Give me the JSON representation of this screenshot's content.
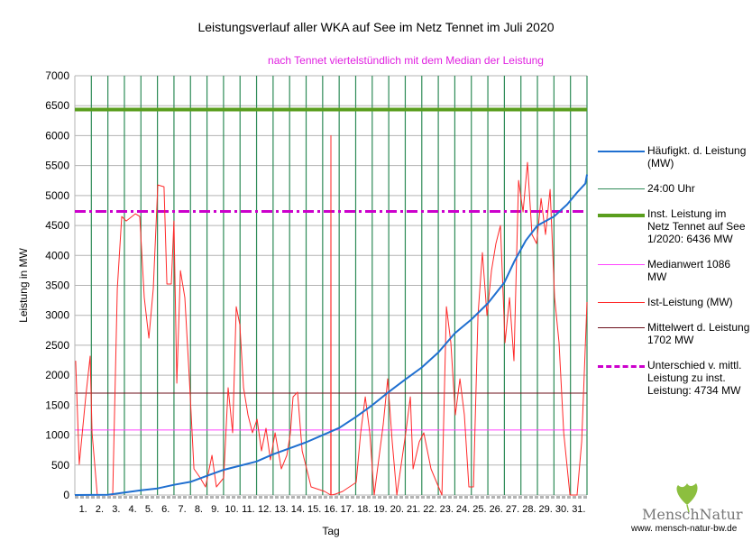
{
  "chart_data": {
    "type": "line",
    "title": "Leistungsverlauf aller WKA auf See im Netz Tennet im Juli 2020",
    "subtitle": "nach Tennet viertelstündlich mit dem Median der Leistung",
    "xlabel": "Tag",
    "ylabel": "Leistung in MW",
    "ylim": [
      0,
      7000
    ],
    "xlim": [
      0,
      31
    ],
    "y_ticks": [
      "0",
      "500",
      "1000",
      "1500",
      "2000",
      "2500",
      "3000",
      "3500",
      "4000",
      "4500",
      "5000",
      "5500",
      "6000",
      "6500",
      "7000"
    ],
    "x_ticks": [
      "1.",
      "2.",
      "3.",
      "4.",
      "5.",
      "6.",
      "7.",
      "8.",
      "9.",
      "10.",
      "11.",
      "12.",
      "13.",
      "14.",
      "15.",
      "16.",
      "17.",
      "18.",
      "19.",
      "20.",
      "21.",
      "22.",
      "23.",
      "24.",
      "25.",
      "26.",
      "27.",
      "28.",
      "29.",
      "30.",
      "31."
    ],
    "legend_position": "right",
    "colors": {
      "freq": "#1f6fd0",
      "midnight": "#2e8b57",
      "installed": "#5a9e1e",
      "median": "#ff44ff",
      "actual": "#ff2a2a",
      "mean": "#6b0f1a",
      "diff": "#cc00cc"
    },
    "legend": [
      {
        "label": "Häufigkt. d. Leistung (MW)",
        "key": "freq"
      },
      {
        "label": "24:00 Uhr",
        "key": "midnight"
      },
      {
        "label": "Inst. Leistung im Netz Tennet auf See 1/2020: 6436  MW",
        "key": "installed"
      },
      {
        "label": "Medianwert 1086 MW",
        "key": "median"
      },
      {
        "label": "Ist-Leistung (MW)",
        "key": "actual"
      },
      {
        "label": "Mittelwert d. Leistung 1702 MW",
        "key": "mean"
      },
      {
        "label": "Unterschied v. mittl. Leistung zu inst. Leistung: 4734 MW",
        "key": "diff"
      }
    ],
    "installed_mw": 6436,
    "median_mw": 1086,
    "mean_mw": 1702,
    "diff_level_mw": 4734,
    "series": [
      {
        "name": "Ist-Leistung (MW)",
        "points": [
          [
            0.05,
            2242
          ],
          [
            0.27,
            512
          ],
          [
            0.66,
            1640
          ],
          [
            0.93,
            2318
          ],
          [
            1.04,
            1038
          ],
          [
            1.36,
            0
          ],
          [
            2.29,
            0
          ],
          [
            2.57,
            3446
          ],
          [
            2.84,
            4650
          ],
          [
            3.11,
            4575
          ],
          [
            3.66,
            4696
          ],
          [
            3.93,
            4650
          ],
          [
            4.2,
            3296
          ],
          [
            4.48,
            2619
          ],
          [
            4.75,
            3446
          ],
          [
            5.02,
            5177
          ],
          [
            5.4,
            5147
          ],
          [
            5.57,
            3522
          ],
          [
            5.84,
            3522
          ],
          [
            6.0,
            4575
          ],
          [
            6.17,
            1866
          ],
          [
            6.39,
            3747
          ],
          [
            6.66,
            3296
          ],
          [
            6.93,
            1941
          ],
          [
            7.21,
            436
          ],
          [
            7.59,
            286
          ],
          [
            7.91,
            135
          ],
          [
            8.3,
            662
          ],
          [
            8.57,
            135
          ],
          [
            9.01,
            286
          ],
          [
            9.28,
            1791
          ],
          [
            9.55,
            1038
          ],
          [
            9.77,
            3145
          ],
          [
            9.99,
            2844
          ],
          [
            10.21,
            1791
          ],
          [
            10.48,
            1339
          ],
          [
            10.75,
            1038
          ],
          [
            11.03,
            1264
          ],
          [
            11.3,
            737
          ],
          [
            11.57,
            1114
          ],
          [
            11.84,
            587
          ],
          [
            12.12,
            1038
          ],
          [
            12.5,
            436
          ],
          [
            12.83,
            662
          ],
          [
            13.05,
            1038
          ],
          [
            13.21,
            1640
          ],
          [
            13.48,
            1716
          ],
          [
            13.76,
            737
          ],
          [
            14.03,
            436
          ],
          [
            14.3,
            135
          ],
          [
            15.12,
            60
          ],
          [
            15.49,
            0
          ],
          [
            15.5,
            6000
          ],
          [
            15.51,
            0
          ],
          [
            15.77,
            15
          ],
          [
            16.21,
            60
          ],
          [
            17.03,
            211
          ],
          [
            17.3,
            1038
          ],
          [
            17.58,
            1640
          ],
          [
            17.85,
            1038
          ],
          [
            18.12,
            0
          ],
          [
            18.67,
            1189
          ],
          [
            18.94,
            1941
          ],
          [
            19.21,
            888
          ],
          [
            19.49,
            0
          ],
          [
            20.03,
            1038
          ],
          [
            20.31,
            1640
          ],
          [
            20.47,
            436
          ],
          [
            20.85,
            888
          ],
          [
            21.12,
            1038
          ],
          [
            21.56,
            436
          ],
          [
            22.22,
            0
          ],
          [
            22.49,
            3145
          ],
          [
            22.76,
            2543
          ],
          [
            23.03,
            1339
          ],
          [
            23.31,
            1941
          ],
          [
            23.58,
            1339
          ],
          [
            23.85,
            135
          ],
          [
            24.13,
            135
          ],
          [
            24.4,
            2995
          ],
          [
            24.67,
            4048
          ],
          [
            24.95,
            2995
          ],
          [
            25.22,
            3747
          ],
          [
            25.49,
            4199
          ],
          [
            25.76,
            4500
          ],
          [
            26.04,
            2543
          ],
          [
            26.31,
            3296
          ],
          [
            26.58,
            2242
          ],
          [
            26.86,
            5252
          ],
          [
            27.13,
            4726
          ],
          [
            27.4,
            5553
          ],
          [
            27.67,
            4349
          ],
          [
            27.95,
            4199
          ],
          [
            28.22,
            4951
          ],
          [
            28.49,
            4349
          ],
          [
            28.77,
            5102
          ],
          [
            29.04,
            3296
          ],
          [
            29.31,
            2543
          ],
          [
            29.59,
            1038
          ],
          [
            29.97,
            0
          ],
          [
            30.4,
            0
          ],
          [
            30.68,
            888
          ],
          [
            31.0,
            3221
          ]
        ]
      },
      {
        "name": "Häufigkt. d. Leistung (MW)",
        "points": [
          [
            0,
            0
          ],
          [
            2,
            5
          ],
          [
            3,
            40
          ],
          [
            4,
            80
          ],
          [
            5,
            110
          ],
          [
            6,
            170
          ],
          [
            7,
            220
          ],
          [
            8,
            320
          ],
          [
            9,
            420
          ],
          [
            10,
            490
          ],
          [
            11,
            560
          ],
          [
            12,
            680
          ],
          [
            13,
            780
          ],
          [
            14,
            880
          ],
          [
            15,
            1000
          ],
          [
            16,
            1120
          ],
          [
            17,
            1300
          ],
          [
            18,
            1500
          ],
          [
            19,
            1720
          ],
          [
            20,
            1930
          ],
          [
            21,
            2130
          ],
          [
            22,
            2380
          ],
          [
            23,
            2700
          ],
          [
            24,
            2930
          ],
          [
            25,
            3200
          ],
          [
            26,
            3550
          ],
          [
            26.6,
            3900
          ],
          [
            27.3,
            4250
          ],
          [
            28,
            4500
          ],
          [
            29,
            4650
          ],
          [
            29.8,
            4850
          ],
          [
            30.4,
            5050
          ],
          [
            30.9,
            5200
          ],
          [
            31,
            5350
          ]
        ]
      }
    ]
  },
  "logo": {
    "name": "MenschNatur",
    "url": "www. mensch-natur-bw.de"
  }
}
